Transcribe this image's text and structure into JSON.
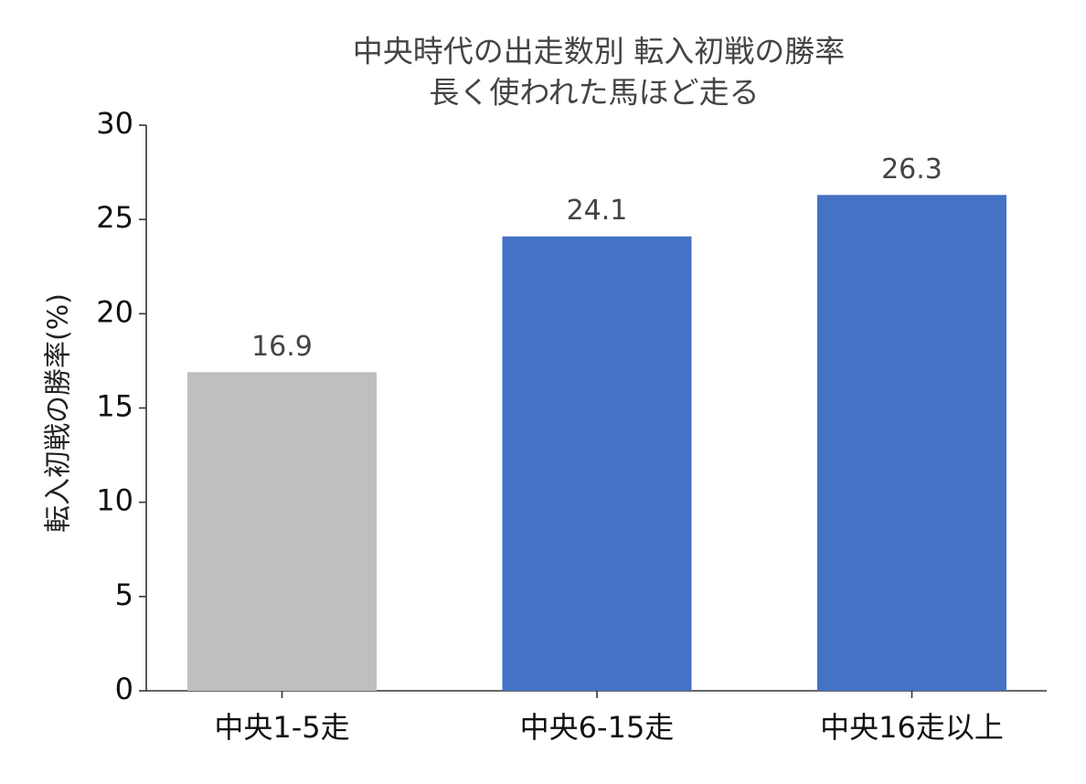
{
  "chart_data": {
    "type": "bar",
    "title": "中央時代の出走数別 転入初戦の勝率",
    "subtitle": "長く使われた馬ほど走る",
    "y_label": "転入初戦の勝率(%)",
    "categories": [
      "中央1-5走",
      "中央6-15走",
      "中央16走以上"
    ],
    "values": [
      16.9,
      24.1,
      26.3
    ],
    "colors": [
      "#bfbfbf",
      "#4472c4",
      "#4472c4"
    ],
    "ylim": [
      0,
      30
    ],
    "yticks": [
      0,
      5,
      10,
      15,
      20,
      25,
      30
    ]
  }
}
